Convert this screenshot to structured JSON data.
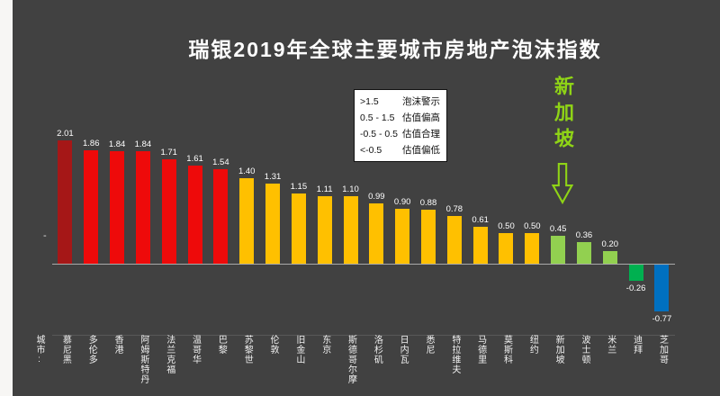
{
  "colors": {
    "background": "#414141",
    "dark_red": "#a51717",
    "red": "#ee0a0a",
    "yellow": "#ffc000",
    "green_light": "#92d050",
    "green_mid": "#00b050",
    "blue": "#0070c0",
    "annotation_green": "#8fd416",
    "title_text": "#ffffff"
  },
  "y_axis_tick": "-",
  "chart_data": {
    "type": "bar",
    "title": "瑞银2019年全球主要城市房地产泡沫指数",
    "x_axis_prefix": "城市:",
    "categories": [
      "慕尼黑",
      "多伦多",
      "香港",
      "阿姆斯特丹",
      "法兰克福",
      "温哥华",
      "巴黎",
      "苏黎世",
      "伦敦",
      "旧金山",
      "东京",
      "斯德哥尔摩",
      "洛杉矶",
      "日内瓦",
      "悉尼",
      "特拉维夫",
      "马德里",
      "莫斯科",
      "纽约",
      "新加坡",
      "波士顿",
      "米兰",
      "迪拜",
      "芝加哥"
    ],
    "values": [
      2.01,
      1.86,
      1.84,
      1.84,
      1.71,
      1.61,
      1.54,
      1.4,
      1.31,
      1.15,
      1.11,
      1.1,
      0.99,
      0.9,
      0.88,
      0.78,
      0.61,
      0.5,
      0.5,
      0.45,
      0.36,
      0.2,
      -0.26,
      -0.77
    ],
    "bar_color_keys": [
      "dark_red",
      "red",
      "red",
      "red",
      "red",
      "red",
      "red",
      "yellow",
      "yellow",
      "yellow",
      "yellow",
      "yellow",
      "yellow",
      "yellow",
      "yellow",
      "yellow",
      "yellow",
      "yellow",
      "yellow",
      "green_light",
      "green_light",
      "green_light",
      "green_mid",
      "blue"
    ],
    "ylim": [
      -1.0,
      2.2
    ],
    "grid": false,
    "legend": {
      "position": "top-center",
      "rows": [
        {
          "range": ">1.5",
          "label": "泡沫警示"
        },
        {
          "range": "0.5 - 1.5",
          "label": "估值偏高"
        },
        {
          "range": "-0.5 - 0.5",
          "label": "估值合理"
        },
        {
          "range": "<-0.5",
          "label": "估值偏低"
        }
      ]
    },
    "annotation": {
      "text": "新加坡",
      "target_category": "新加坡",
      "arrow": "down"
    }
  }
}
